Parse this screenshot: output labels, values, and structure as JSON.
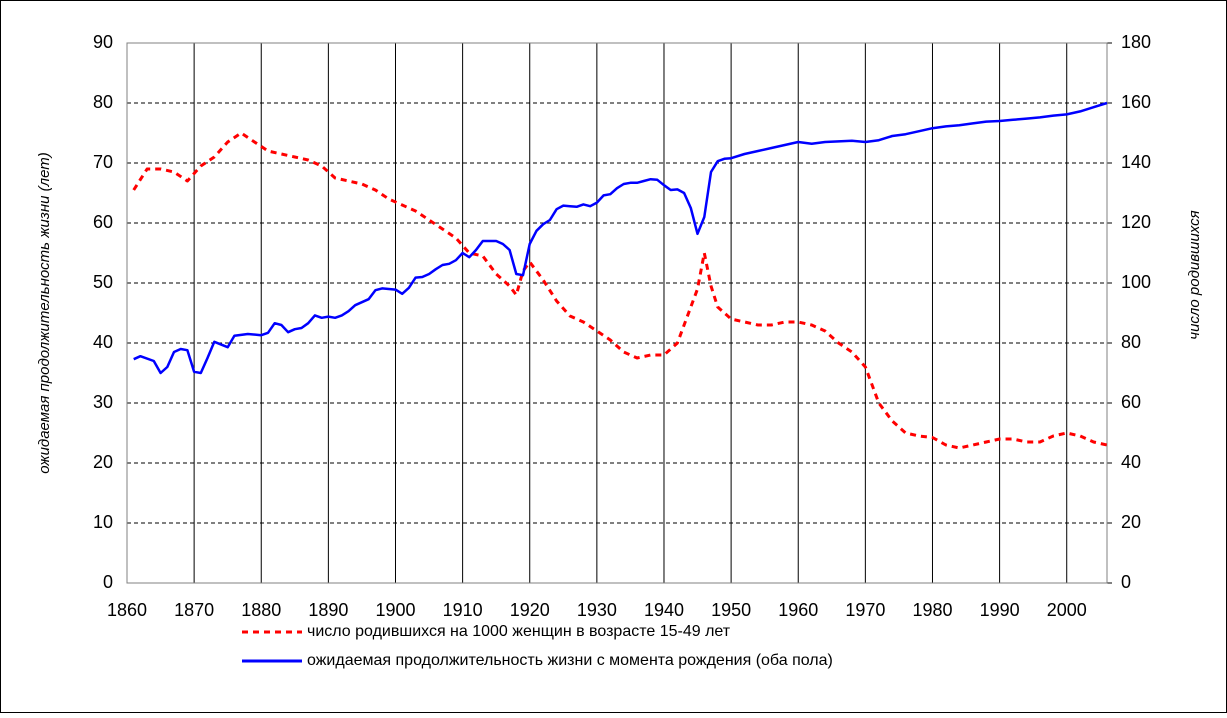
{
  "chart_data": {
    "type": "line",
    "y_label": "ожидаемая продолжительность жизни (лет)",
    "y2_label": "число родившихся",
    "xlim": [
      1860,
      2006
    ],
    "xticks": [
      1860,
      1870,
      1880,
      1890,
      1900,
      1910,
      1920,
      1930,
      1940,
      1950,
      1960,
      1970,
      1980,
      1990,
      2000
    ],
    "ylim": [
      0,
      90
    ],
    "yticks": [
      0,
      10,
      20,
      30,
      40,
      50,
      60,
      70,
      80,
      90
    ],
    "y2lim": [
      0,
      180
    ],
    "y2ticks": [
      0,
      20,
      40,
      60,
      80,
      100,
      120,
      140,
      160,
      180
    ],
    "grid": true,
    "legend": "bottom",
    "series": [
      {
        "name": "число родившихся на 1000 женщин в возрасте 15-49 лет",
        "color": "#ff0000",
        "axis": "y2",
        "dashed": true,
        "x": [
          1861,
          1863,
          1865,
          1867,
          1869,
          1871,
          1873,
          1875,
          1877,
          1879,
          1881,
          1883,
          1885,
          1887,
          1889,
          1891,
          1893,
          1895,
          1897,
          1899,
          1901,
          1903,
          1905,
          1907,
          1909,
          1911,
          1913,
          1915,
          1917,
          1918,
          1919,
          1920,
          1922,
          1924,
          1926,
          1928,
          1930,
          1932,
          1934,
          1936,
          1938,
          1940,
          1942,
          1944,
          1945,
          1946,
          1947,
          1948,
          1950,
          1952,
          1954,
          1956,
          1958,
          1960,
          1962,
          1964,
          1966,
          1968,
          1970,
          1972,
          1974,
          1976,
          1978,
          1980,
          1982,
          1984,
          1986,
          1988,
          1990,
          1992,
          1994,
          1996,
          1998,
          2000,
          2002,
          2004,
          2006
        ],
        "values": [
          131,
          138,
          138,
          137,
          134,
          139,
          142,
          147,
          150,
          147,
          144,
          143,
          142,
          141,
          139,
          135,
          134,
          133,
          131,
          128,
          126,
          124,
          121,
          118,
          115,
          110,
          109,
          103,
          99,
          96,
          104,
          107,
          101,
          94,
          89,
          87,
          84,
          81,
          77,
          75,
          76,
          76,
          80,
          92,
          98,
          110,
          99,
          92,
          88,
          87,
          86,
          86,
          87,
          87,
          86,
          84,
          80,
          77,
          72,
          60,
          54,
          50,
          49,
          48.5,
          46,
          45,
          46,
          47,
          48,
          48,
          47,
          47,
          49,
          50,
          49,
          47,
          46
        ]
      },
      {
        "name": "ожидаемая продолжительность жизни с момента рождения (оба пола)",
        "color": "#0000ff",
        "axis": "y",
        "x": [
          1861,
          1862,
          1864,
          1865,
          1866,
          1867,
          1868,
          1869,
          1870,
          1871,
          1872,
          1873,
          1875,
          1876,
          1878,
          1880,
          1881,
          1882,
          1883,
          1884,
          1885,
          1886,
          1887,
          1888,
          1889,
          1890,
          1891,
          1892,
          1893,
          1894,
          1896,
          1897,
          1898,
          1899,
          1900,
          1901,
          1902,
          1903,
          1904,
          1905,
          1906,
          1907,
          1908,
          1909,
          1910,
          1911,
          1912,
          1913,
          1915,
          1916,
          1917,
          1918,
          1919,
          1920,
          1921,
          1922,
          1923,
          1924,
          1925,
          1926,
          1927,
          1928,
          1929,
          1930,
          1931,
          1932,
          1933,
          1934,
          1935,
          1936,
          1937,
          1938,
          1939,
          1940,
          1941,
          1942,
          1943,
          1944,
          1945,
          1946,
          1947,
          1948,
          1949,
          1950,
          1952,
          1954,
          1956,
          1958,
          1960,
          1962,
          1964,
          1966,
          1968,
          1970,
          1972,
          1974,
          1976,
          1978,
          1980,
          1982,
          1984,
          1986,
          1988,
          1990,
          1992,
          1994,
          1996,
          1998,
          2000,
          2002,
          2004,
          2006
        ],
        "values": [
          37.3,
          37.8,
          37,
          35,
          36,
          38.5,
          39,
          38.8,
          35.2,
          35,
          37.5,
          40.2,
          39.3,
          41.2,
          41.5,
          41.3,
          41.7,
          43.3,
          43,
          41.8,
          42.3,
          42.5,
          43.3,
          44.6,
          44.2,
          44.4,
          44.2,
          44.6,
          45.3,
          46.3,
          47.3,
          48.8,
          49.1,
          49,
          48.9,
          48.2,
          49.2,
          50.9,
          51,
          51.5,
          52.3,
          53,
          53.2,
          53.8,
          55,
          54.3,
          55.5,
          57,
          57,
          56.5,
          55.5,
          51.5,
          51.3,
          56.5,
          58.7,
          59.8,
          60.5,
          62.3,
          62.9,
          62.8,
          62.7,
          63.1,
          62.8,
          63.4,
          64.6,
          64.8,
          65.8,
          66.5,
          66.7,
          66.7,
          67,
          67.3,
          67.2,
          66.3,
          65.5,
          65.6,
          65,
          62.5,
          58.2,
          61,
          68.5,
          70.3,
          70.7,
          70.8,
          71.5,
          72,
          72.5,
          73,
          73.5,
          73.2,
          73.5,
          73.6,
          73.7,
          73.5,
          73.8,
          74.5,
          74.8,
          75.3,
          75.8,
          76.1,
          76.3,
          76.6,
          76.9,
          77,
          77.2,
          77.4,
          77.6,
          77.9,
          78.1,
          78.6,
          79.3,
          80
        ]
      }
    ]
  }
}
